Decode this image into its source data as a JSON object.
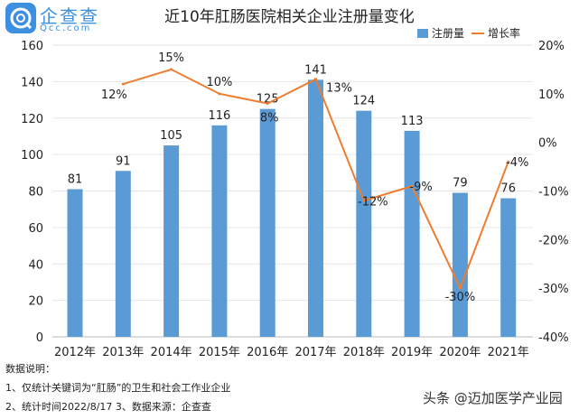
{
  "logo": {
    "name": "企查查",
    "sub": "Qcc.com"
  },
  "chart_data": {
    "type": "bar+line",
    "title": "近10年肛肠医院相关企业注册量变化",
    "categories": [
      "2012年",
      "2013年",
      "2014年",
      "2015年",
      "2016年",
      "2017年",
      "2018年",
      "2019年",
      "2020年",
      "2021年"
    ],
    "series": [
      {
        "name": "注册量",
        "type": "bar",
        "axis": "left",
        "color": "#5b9bd5",
        "values": [
          81,
          91,
          105,
          116,
          125,
          141,
          124,
          113,
          79,
          76
        ]
      },
      {
        "name": "增长率",
        "type": "line",
        "axis": "right",
        "color": "#ed7d31",
        "values": [
          null,
          12,
          15,
          10,
          8,
          13,
          -12,
          -9,
          -30,
          -4
        ],
        "labels": [
          "",
          "12%",
          "15%",
          "10%",
          "8%",
          "13%",
          "-12%",
          "-9%",
          "-30%",
          "-4%"
        ]
      }
    ],
    "ylim": [
      0,
      160
    ],
    "yticks": [
      0,
      20,
      40,
      60,
      80,
      100,
      120,
      140,
      160
    ],
    "y2lim": [
      -40,
      20
    ],
    "y2ticks": [
      "-40%",
      "-30%",
      "-20%",
      "-10%",
      "0%",
      "10%",
      "20%"
    ],
    "grid": true,
    "legend": "top-right"
  },
  "notes": [
    "数据说明：",
    "1、仅统计关键词为“肛肠”的卫生和社会工作业企业",
    "2、统计时间2022/8/17   3、数据来源：企查查"
  ],
  "watermark": "头条 @迈加医学产业园"
}
